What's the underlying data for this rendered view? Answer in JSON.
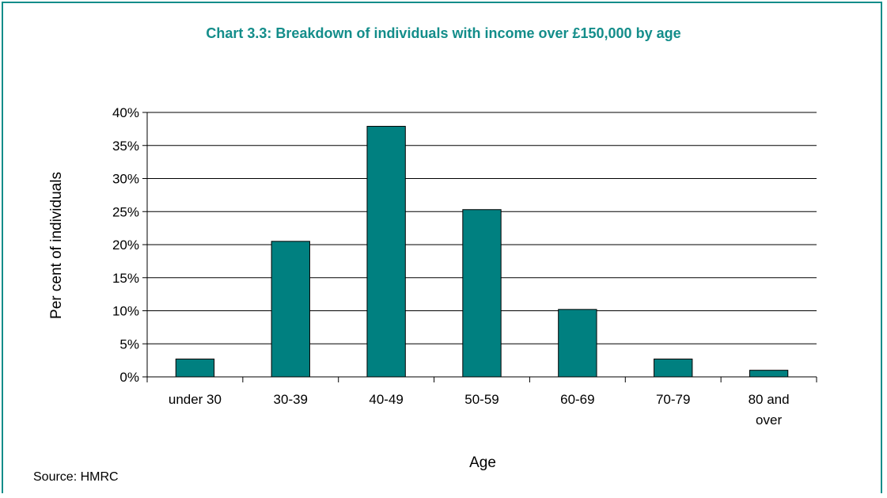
{
  "chart_data": {
    "type": "bar",
    "title": "Chart 3.3: Breakdown of individuals with income over £150,000 by age",
    "xlabel": "Age",
    "ylabel": "Per cent of individuals",
    "categories": [
      "under 30",
      "30-39",
      "40-49",
      "50-59",
      "60-69",
      "70-79",
      "80 and over"
    ],
    "values": [
      2.7,
      20.5,
      37.9,
      25.3,
      10.2,
      2.7,
      1.0
    ],
    "ylim": [
      0,
      40
    ],
    "yticks": [
      "0%",
      "5%",
      "10%",
      "15%",
      "20%",
      "25%",
      "30%",
      "35%",
      "40%"
    ],
    "grid": true,
    "legend": "none",
    "bar_color": "#008080",
    "accent_color": "#138d8a"
  },
  "source": "Source: HMRC"
}
